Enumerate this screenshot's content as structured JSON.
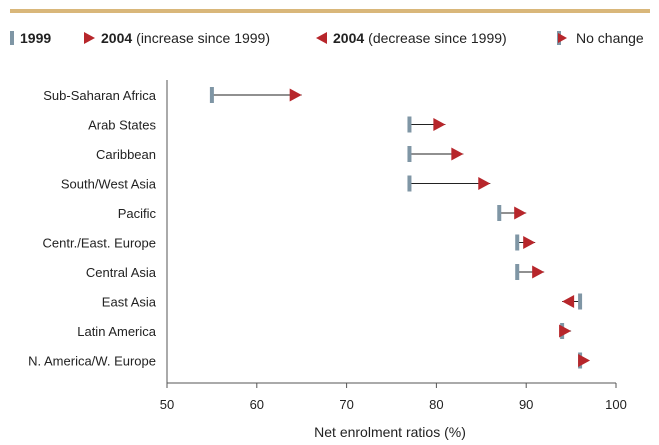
{
  "legend": {
    "l1999": "1999",
    "l2004": "2004",
    "inc": "(increase since 1999)",
    "dec": "(decrease since 1999)",
    "nochange": "No change"
  },
  "colors": {
    "bar1999": "#7f96a5",
    "marker2004": "#b7262b",
    "connector": "#222222",
    "top_rule": "#d9b77a"
  },
  "chart_data": {
    "type": "dumbbell",
    "xlabel": "Net enrolment ratios (%)",
    "xlim": [
      50,
      100
    ],
    "xticks": [
      50,
      60,
      70,
      80,
      90,
      100
    ],
    "grid": false,
    "legend_position": "top",
    "categories": [
      "Sub-Saharan Africa",
      "Arab States",
      "Caribbean",
      "South/West Asia",
      "Pacific",
      "Centr./East. Europe",
      "Central Asia",
      "East Asia",
      "Latin America",
      "N. America/W. Europe"
    ],
    "series": [
      {
        "name": "1999",
        "values": [
          55,
          77,
          77,
          77,
          87,
          89,
          89,
          96,
          94,
          96
        ]
      },
      {
        "name": "2004",
        "values": [
          65,
          81,
          83,
          86,
          90,
          91,
          92,
          94,
          95,
          96
        ]
      }
    ]
  }
}
